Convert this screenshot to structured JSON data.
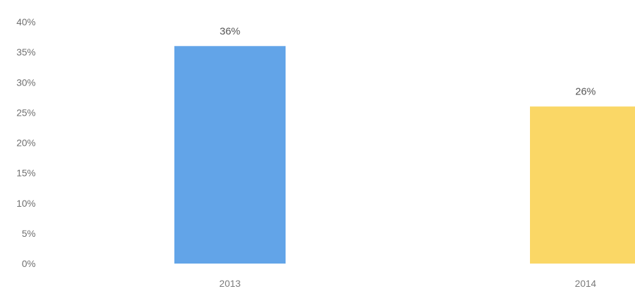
{
  "chart_data": {
    "type": "bar",
    "categories": [
      "2013",
      "2014"
    ],
    "values": [
      36,
      26
    ],
    "data_labels": [
      "36%",
      "26%"
    ],
    "bar_colors": [
      "#62a4e8",
      "#fad766"
    ],
    "ylim": [
      0,
      40
    ],
    "y_ticks": [
      0,
      5,
      10,
      15,
      20,
      25,
      30,
      35,
      40
    ],
    "y_tick_labels": [
      "0%",
      "5%",
      "10%",
      "15%",
      "20%",
      "25%",
      "30%",
      "35%",
      "40%"
    ],
    "grid": false,
    "legend": "none"
  }
}
